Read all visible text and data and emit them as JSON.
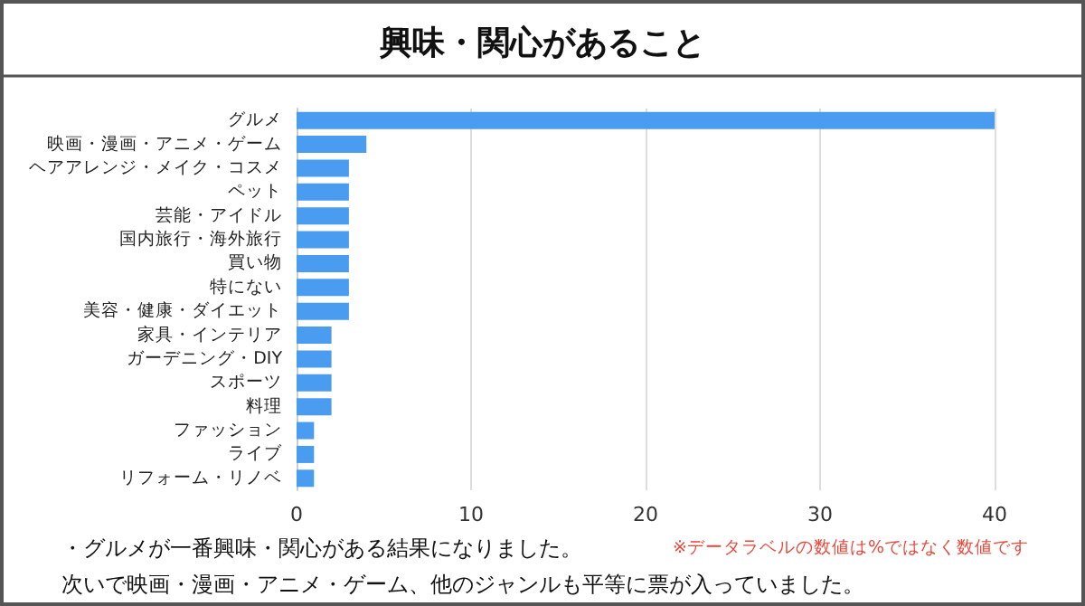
{
  "chart_data": {
    "type": "bar",
    "orientation": "horizontal",
    "title": "興味・関心があること",
    "categories": [
      "グルメ",
      "映画・漫画・アニメ・ゲーム",
      "ヘアアレンジ・メイク・コスメ",
      "ペット",
      "芸能・アイドル",
      "国内旅行・海外旅行",
      "買い物",
      "特にない",
      "美容・健康・ダイエット",
      "家具・インテリア",
      "ガーデニング・DIY",
      "スポーツ",
      "料理",
      "ファッション",
      "ライブ",
      "リフォーム・リノベ"
    ],
    "values": [
      40,
      4,
      3,
      3,
      3,
      3,
      3,
      3,
      3,
      2,
      2,
      2,
      2,
      1,
      1,
      1
    ],
    "color": "#4a9cf0",
    "xlim": [
      0,
      40
    ],
    "xticks": [
      0,
      10,
      20,
      30,
      40
    ],
    "grid": "x",
    "annotations": [
      "※データラベルの数値は%ではなく数値です",
      "・グルメが一番興味・関心がある結果になりました。",
      "次いで映画・漫画・アニメ・ゲーム、他のジャンルも平等に票が入っていました。"
    ]
  }
}
